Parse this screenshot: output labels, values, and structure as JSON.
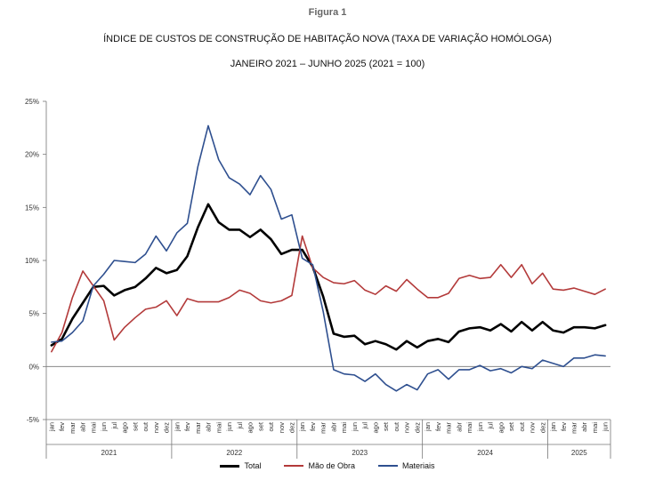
{
  "figure_label": "Figura 1",
  "title": "ÍNDICE DE CUSTOS DE CONSTRUÇÃO DE HABITAÇÃO NOVA (TAXA DE VARIAÇÃO HOMÓLOGA)",
  "subtitle": "JANEIRO 2021 – JUNHO 2025 (2021 = 100)",
  "chart_data": {
    "type": "line",
    "title": "ÍNDICE DE CUSTOS DE CONSTRUÇÃO DE HABITAÇÃO NOVA (TAXA DE VARIAÇÃO HOMÓLOGA)",
    "subtitle": "JANEIRO 2021 – JUNHO 2025 (2021 = 100)",
    "ylim": [
      -5,
      25
    ],
    "y_ticks": [
      "-5%",
      "0%",
      "5%",
      "10%",
      "15%",
      "20%",
      "25%"
    ],
    "y_tick_values": [
      -5,
      0,
      5,
      10,
      15,
      20,
      25
    ],
    "grid": false,
    "legend_position": "bottom",
    "month_labels": [
      "jan",
      "fev",
      "mar",
      "abr",
      "mai",
      "jun",
      "jul",
      "ago",
      "set",
      "out",
      "nov",
      "dez"
    ],
    "years": [
      {
        "label": "2021",
        "months": 12
      },
      {
        "label": "2022",
        "months": 12
      },
      {
        "label": "2023",
        "months": 12
      },
      {
        "label": "2024",
        "months": 12
      },
      {
        "label": "2025",
        "months": 6
      }
    ],
    "series": [
      {
        "name": "Total",
        "color": "#000000",
        "width": 2.6,
        "values": [
          2.0,
          2.6,
          4.5,
          6.0,
          7.5,
          7.6,
          6.7,
          7.2,
          7.5,
          8.3,
          9.3,
          8.8,
          9.1,
          10.4,
          13.1,
          15.3,
          13.6,
          12.9,
          12.9,
          12.2,
          12.9,
          12.0,
          10.6,
          11.0,
          11.0,
          9.4,
          6.6,
          3.1,
          2.8,
          2.9,
          2.1,
          2.4,
          2.1,
          1.6,
          2.4,
          1.8,
          2.4,
          2.6,
          2.3,
          3.3,
          3.6,
          3.7,
          3.4,
          4.0,
          3.3,
          4.2,
          3.4,
          4.2,
          3.4,
          3.2,
          3.7,
          3.7,
          3.6,
          3.9
        ]
      },
      {
        "name": "Mão de Obra",
        "color": "#b33a3a",
        "width": 1.6,
        "values": [
          1.4,
          3.2,
          6.5,
          9.0,
          7.6,
          6.2,
          2.5,
          3.7,
          4.6,
          5.4,
          5.6,
          6.2,
          4.8,
          6.4,
          6.1,
          6.1,
          6.1,
          6.5,
          7.2,
          6.9,
          6.2,
          6.0,
          6.2,
          6.7,
          12.3,
          9.3,
          8.4,
          7.9,
          7.8,
          8.1,
          7.2,
          6.8,
          7.6,
          7.1,
          8.2,
          7.3,
          6.5,
          6.5,
          6.9,
          8.3,
          8.6,
          8.3,
          8.4,
          9.6,
          8.4,
          9.6,
          7.8,
          8.8,
          7.3,
          7.2,
          7.4,
          7.1,
          6.8,
          7.3
        ]
      },
      {
        "name": "Materiais",
        "color": "#2e4f8f",
        "width": 1.6,
        "values": [
          2.3,
          2.4,
          3.2,
          4.3,
          7.6,
          8.7,
          10.0,
          9.9,
          9.8,
          10.6,
          12.3,
          10.9,
          12.6,
          13.5,
          18.8,
          22.7,
          19.5,
          17.8,
          17.2,
          16.2,
          18.0,
          16.7,
          13.9,
          14.3,
          10.2,
          9.6,
          5.2,
          -0.3,
          -0.7,
          -0.8,
          -1.4,
          -0.7,
          -1.7,
          -2.3,
          -1.7,
          -2.2,
          -0.7,
          -0.3,
          -1.2,
          -0.3,
          -0.3,
          0.1,
          -0.4,
          -0.2,
          -0.6,
          0.0,
          -0.2,
          0.6,
          0.3,
          0.0,
          0.8,
          0.8,
          1.1,
          1.0
        ]
      }
    ]
  }
}
